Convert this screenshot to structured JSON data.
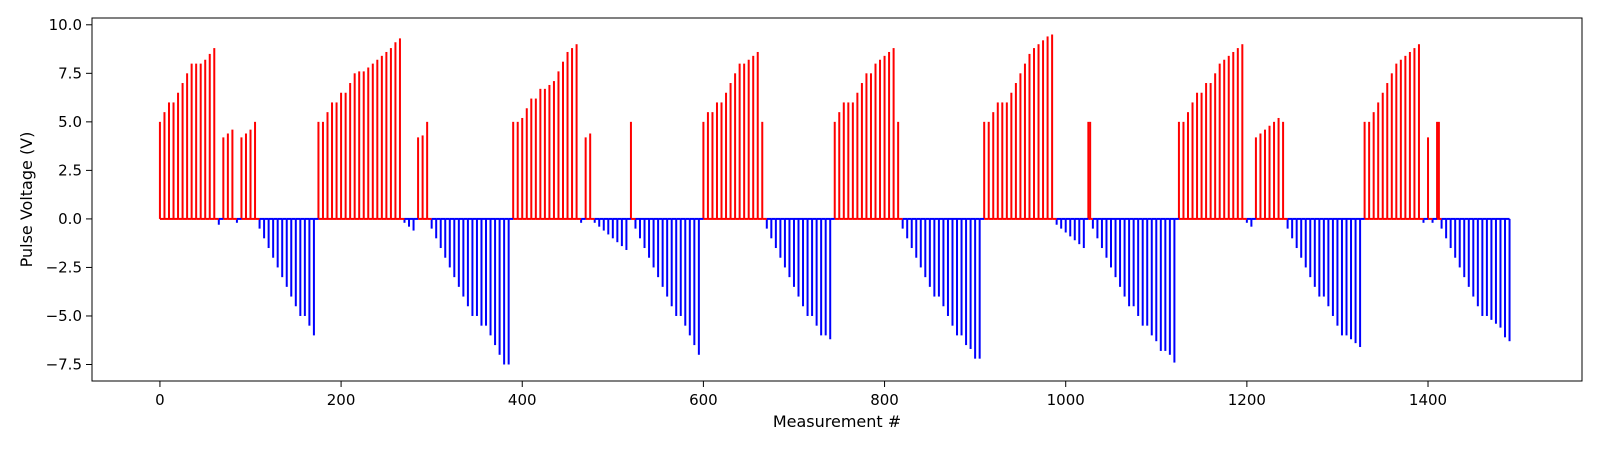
{
  "chart_data": {
    "type": "bar",
    "title": "",
    "xlabel": "Measurement #",
    "ylabel": "Pulse Voltage (V)",
    "xlim": [
      -75,
      1570
    ],
    "ylim": [
      -8.35,
      10.35
    ],
    "grid": false,
    "x_ticks": [
      0,
      200,
      400,
      600,
      800,
      1000,
      1200,
      1400
    ],
    "x_tick_labels": [
      "0",
      "200",
      "400",
      "600",
      "800",
      "1000",
      "1200",
      "1400"
    ],
    "y_ticks": [
      -7.5,
      -5.0,
      -2.5,
      0.0,
      2.5,
      5.0,
      7.5,
      10.0
    ],
    "y_tick_labels": [
      "−7.5",
      "−5.0",
      "−2.5",
      "0.0",
      "2.5",
      "5.0",
      "7.5",
      "10.0"
    ],
    "colors": {
      "positive": "#ff0000",
      "negative": "#0000ff"
    },
    "series": [
      {
        "color": "#ff0000",
        "points": [
          [
            0,
            5.0
          ],
          [
            5,
            5.5
          ],
          [
            10,
            6.0
          ],
          [
            15,
            6.0
          ],
          [
            20,
            6.5
          ],
          [
            25,
            7.0
          ],
          [
            30,
            7.5
          ],
          [
            35,
            8.0
          ],
          [
            40,
            8.0
          ],
          [
            45,
            8.0
          ],
          [
            50,
            8.2
          ],
          [
            55,
            8.5
          ],
          [
            60,
            8.8
          ],
          [
            70,
            4.2
          ],
          [
            75,
            4.4
          ],
          [
            80,
            4.6
          ],
          [
            90,
            4.2
          ],
          [
            95,
            4.4
          ],
          [
            100,
            4.6
          ],
          [
            105,
            5.0
          ],
          [
            175,
            5.0
          ],
          [
            180,
            5.0
          ],
          [
            185,
            5.5
          ],
          [
            190,
            6.0
          ],
          [
            195,
            6.0
          ],
          [
            200,
            6.5
          ],
          [
            205,
            6.5
          ],
          [
            210,
            7.0
          ],
          [
            215,
            7.5
          ],
          [
            220,
            7.6
          ],
          [
            225,
            7.6
          ],
          [
            230,
            7.8
          ],
          [
            235,
            8.0
          ],
          [
            240,
            8.2
          ],
          [
            245,
            8.4
          ],
          [
            250,
            8.6
          ],
          [
            255,
            8.8
          ],
          [
            260,
            9.1
          ],
          [
            265,
            9.3
          ],
          [
            285,
            4.2
          ],
          [
            290,
            4.3
          ],
          [
            295,
            5.0
          ],
          [
            390,
            5.0
          ],
          [
            395,
            5.0
          ],
          [
            400,
            5.2
          ],
          [
            405,
            5.7
          ],
          [
            410,
            6.2
          ],
          [
            415,
            6.2
          ],
          [
            420,
            6.7
          ],
          [
            425,
            6.7
          ],
          [
            430,
            6.9
          ],
          [
            435,
            7.1
          ],
          [
            440,
            7.6
          ],
          [
            445,
            8.1
          ],
          [
            450,
            8.6
          ],
          [
            455,
            8.8
          ],
          [
            460,
            9.0
          ],
          [
            470,
            4.2
          ],
          [
            475,
            4.4
          ],
          [
            520,
            5.0
          ],
          [
            600,
            5.0
          ],
          [
            605,
            5.5
          ],
          [
            610,
            5.5
          ],
          [
            615,
            6.0
          ],
          [
            620,
            6.0
          ],
          [
            625,
            6.5
          ],
          [
            630,
            7.0
          ],
          [
            635,
            7.5
          ],
          [
            640,
            8.0
          ],
          [
            645,
            8.0
          ],
          [
            650,
            8.2
          ],
          [
            655,
            8.4
          ],
          [
            660,
            8.6
          ],
          [
            665,
            5.0
          ],
          [
            745,
            5.0
          ],
          [
            750,
            5.5
          ],
          [
            755,
            6.0
          ],
          [
            760,
            6.0
          ],
          [
            765,
            6.0
          ],
          [
            770,
            6.5
          ],
          [
            775,
            7.0
          ],
          [
            780,
            7.5
          ],
          [
            785,
            7.5
          ],
          [
            790,
            8.0
          ],
          [
            795,
            8.2
          ],
          [
            800,
            8.4
          ],
          [
            805,
            8.6
          ],
          [
            810,
            8.8
          ],
          [
            815,
            5.0
          ],
          [
            910,
            5.0
          ],
          [
            915,
            5.0
          ],
          [
            920,
            5.5
          ],
          [
            925,
            6.0
          ],
          [
            930,
            6.0
          ],
          [
            935,
            6.0
          ],
          [
            940,
            6.5
          ],
          [
            945,
            7.0
          ],
          [
            950,
            7.5
          ],
          [
            955,
            8.0
          ],
          [
            960,
            8.5
          ],
          [
            965,
            8.8
          ],
          [
            970,
            9.0
          ],
          [
            975,
            9.2
          ],
          [
            980,
            9.4
          ],
          [
            985,
            9.5
          ],
          [
            1025,
            5.0
          ],
          [
            1027,
            5.0
          ],
          [
            1125,
            5.0
          ],
          [
            1130,
            5.0
          ],
          [
            1135,
            5.5
          ],
          [
            1140,
            6.0
          ],
          [
            1145,
            6.5
          ],
          [
            1150,
            6.5
          ],
          [
            1155,
            7.0
          ],
          [
            1160,
            7.0
          ],
          [
            1165,
            7.5
          ],
          [
            1170,
            8.0
          ],
          [
            1175,
            8.2
          ],
          [
            1180,
            8.4
          ],
          [
            1185,
            8.6
          ],
          [
            1190,
            8.8
          ],
          [
            1195,
            9.0
          ],
          [
            1210,
            4.2
          ],
          [
            1215,
            4.4
          ],
          [
            1220,
            4.6
          ],
          [
            1225,
            4.8
          ],
          [
            1230,
            5.0
          ],
          [
            1235,
            5.2
          ],
          [
            1240,
            5.0
          ],
          [
            1330,
            5.0
          ],
          [
            1335,
            5.0
          ],
          [
            1340,
            5.5
          ],
          [
            1345,
            6.0
          ],
          [
            1350,
            6.5
          ],
          [
            1355,
            7.0
          ],
          [
            1360,
            7.5
          ],
          [
            1365,
            8.0
          ],
          [
            1370,
            8.2
          ],
          [
            1375,
            8.4
          ],
          [
            1380,
            8.6
          ],
          [
            1385,
            8.8
          ],
          [
            1390,
            9.0
          ],
          [
            1400,
            4.2
          ],
          [
            1410,
            5.0
          ],
          [
            1412,
            5.0
          ]
        ]
      },
      {
        "color": "#0000ff",
        "points": [
          [
            65,
            -0.3
          ],
          [
            85,
            -0.2
          ],
          [
            110,
            -0.5
          ],
          [
            115,
            -1.0
          ],
          [
            120,
            -1.5
          ],
          [
            125,
            -2.0
          ],
          [
            130,
            -2.5
          ],
          [
            135,
            -3.0
          ],
          [
            140,
            -3.5
          ],
          [
            145,
            -4.0
          ],
          [
            150,
            -4.5
          ],
          [
            155,
            -5.0
          ],
          [
            160,
            -5.0
          ],
          [
            165,
            -5.5
          ],
          [
            170,
            -6.0
          ],
          [
            270,
            -0.2
          ],
          [
            275,
            -0.4
          ],
          [
            280,
            -0.6
          ],
          [
            300,
            -0.5
          ],
          [
            305,
            -1.0
          ],
          [
            310,
            -1.5
          ],
          [
            315,
            -2.0
          ],
          [
            320,
            -2.5
          ],
          [
            325,
            -3.0
          ],
          [
            330,
            -3.5
          ],
          [
            335,
            -4.0
          ],
          [
            340,
            -4.5
          ],
          [
            345,
            -5.0
          ],
          [
            350,
            -5.0
          ],
          [
            355,
            -5.5
          ],
          [
            360,
            -5.5
          ],
          [
            365,
            -6.0
          ],
          [
            370,
            -6.5
          ],
          [
            375,
            -7.0
          ],
          [
            380,
            -7.5
          ],
          [
            385,
            -7.5
          ],
          [
            465,
            -0.2
          ],
          [
            480,
            -0.2
          ],
          [
            485,
            -0.4
          ],
          [
            490,
            -0.6
          ],
          [
            495,
            -0.8
          ],
          [
            500,
            -1.0
          ],
          [
            505,
            -1.2
          ],
          [
            510,
            -1.4
          ],
          [
            515,
            -1.6
          ],
          [
            525,
            -0.5
          ],
          [
            530,
            -1.0
          ],
          [
            535,
            -1.5
          ],
          [
            540,
            -2.0
          ],
          [
            545,
            -2.5
          ],
          [
            550,
            -3.0
          ],
          [
            555,
            -3.5
          ],
          [
            560,
            -4.0
          ],
          [
            565,
            -4.5
          ],
          [
            570,
            -5.0
          ],
          [
            575,
            -5.0
          ],
          [
            580,
            -5.5
          ],
          [
            585,
            -6.0
          ],
          [
            590,
            -6.5
          ],
          [
            595,
            -7.0
          ],
          [
            670,
            -0.5
          ],
          [
            675,
            -1.0
          ],
          [
            680,
            -1.5
          ],
          [
            685,
            -2.0
          ],
          [
            690,
            -2.5
          ],
          [
            695,
            -3.0
          ],
          [
            700,
            -3.5
          ],
          [
            705,
            -4.0
          ],
          [
            710,
            -4.5
          ],
          [
            715,
            -5.0
          ],
          [
            720,
            -5.0
          ],
          [
            725,
            -5.5
          ],
          [
            730,
            -6.0
          ],
          [
            735,
            -6.0
          ],
          [
            740,
            -6.2
          ],
          [
            820,
            -0.5
          ],
          [
            825,
            -1.0
          ],
          [
            830,
            -1.5
          ],
          [
            835,
            -2.0
          ],
          [
            840,
            -2.5
          ],
          [
            845,
            -3.0
          ],
          [
            850,
            -3.5
          ],
          [
            855,
            -4.0
          ],
          [
            860,
            -4.0
          ],
          [
            865,
            -4.5
          ],
          [
            870,
            -5.0
          ],
          [
            875,
            -5.5
          ],
          [
            880,
            -6.0
          ],
          [
            885,
            -6.0
          ],
          [
            890,
            -6.5
          ],
          [
            895,
            -6.7
          ],
          [
            900,
            -7.2
          ],
          [
            905,
            -7.2
          ],
          [
            990,
            -0.3
          ],
          [
            995,
            -0.5
          ],
          [
            1000,
            -0.7
          ],
          [
            1005,
            -0.9
          ],
          [
            1010,
            -1.1
          ],
          [
            1015,
            -1.3
          ],
          [
            1020,
            -1.5
          ],
          [
            1030,
            -0.5
          ],
          [
            1035,
            -1.0
          ],
          [
            1040,
            -1.5
          ],
          [
            1045,
            -2.0
          ],
          [
            1050,
            -2.5
          ],
          [
            1055,
            -3.0
          ],
          [
            1060,
            -3.5
          ],
          [
            1065,
            -4.0
          ],
          [
            1070,
            -4.5
          ],
          [
            1075,
            -4.5
          ],
          [
            1080,
            -5.0
          ],
          [
            1085,
            -5.5
          ],
          [
            1090,
            -5.5
          ],
          [
            1095,
            -6.0
          ],
          [
            1100,
            -6.3
          ],
          [
            1105,
            -6.8
          ],
          [
            1110,
            -6.8
          ],
          [
            1115,
            -7.0
          ],
          [
            1120,
            -7.4
          ],
          [
            1200,
            -0.2
          ],
          [
            1205,
            -0.4
          ],
          [
            1245,
            -0.5
          ],
          [
            1250,
            -1.0
          ],
          [
            1255,
            -1.5
          ],
          [
            1260,
            -2.0
          ],
          [
            1265,
            -2.5
          ],
          [
            1270,
            -3.0
          ],
          [
            1275,
            -3.5
          ],
          [
            1280,
            -4.0
          ],
          [
            1285,
            -4.0
          ],
          [
            1290,
            -4.5
          ],
          [
            1295,
            -5.0
          ],
          [
            1300,
            -5.5
          ],
          [
            1305,
            -6.0
          ],
          [
            1310,
            -6.0
          ],
          [
            1315,
            -6.2
          ],
          [
            1320,
            -6.4
          ],
          [
            1325,
            -6.6
          ],
          [
            1395,
            -0.2
          ],
          [
            1405,
            -0.2
          ],
          [
            1415,
            -0.5
          ],
          [
            1420,
            -1.0
          ],
          [
            1425,
            -1.5
          ],
          [
            1430,
            -2.0
          ],
          [
            1435,
            -2.5
          ],
          [
            1440,
            -3.0
          ],
          [
            1445,
            -3.5
          ],
          [
            1450,
            -4.0
          ],
          [
            1455,
            -4.5
          ],
          [
            1460,
            -5.0
          ],
          [
            1465,
            -5.0
          ],
          [
            1470,
            -5.2
          ],
          [
            1475,
            -5.4
          ],
          [
            1480,
            -5.6
          ],
          [
            1485,
            -6.1
          ],
          [
            1490,
            -6.3
          ]
        ]
      }
    ]
  }
}
